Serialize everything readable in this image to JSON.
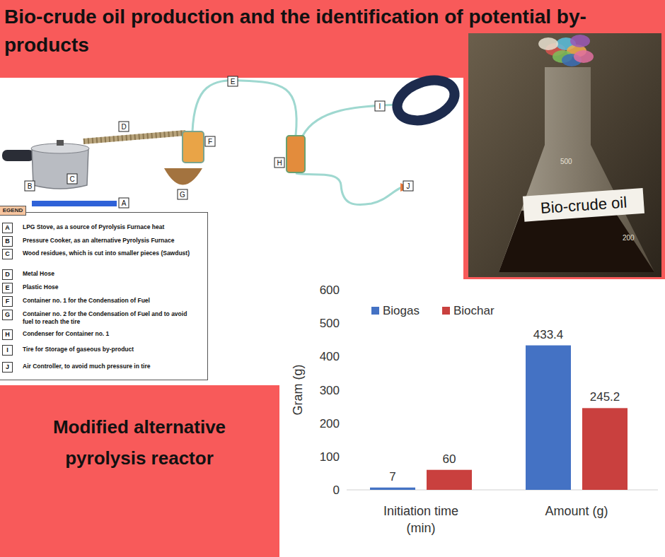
{
  "header": {
    "title": "Bio-crude oil production and the identification of potential by-products"
  },
  "diagram": {
    "title": "Modified alternative pyrolysis reactor",
    "legend_title": "EGEND",
    "parts": [
      {
        "letter": "A",
        "label": "LPG Stove, as a source of Pyrolysis Furnace heat"
      },
      {
        "letter": "B",
        "label": "Pressure Cooker, as an alternative Pyrolysis Furnace"
      },
      {
        "letter": "C",
        "label": "Wood residues, which is cut into smaller pieces (Sawdust)"
      },
      {
        "letter": "D",
        "label": "Metal Hose"
      },
      {
        "letter": "E",
        "label": "Plastic Hose"
      },
      {
        "letter": "F",
        "label": "Container no. 1 for the Condensation of Fuel"
      },
      {
        "letter": "G",
        "label": "Container no. 2 for the Condensation of Fuel and to avoid fuel to reach the tire"
      },
      {
        "letter": "H",
        "label": "Condenser for Container no. 1"
      },
      {
        "letter": "I",
        "label": "Tire for Storage of gaseous by-product"
      },
      {
        "letter": "J",
        "label": "Air Controller, to avoid much pressure in tire"
      }
    ]
  },
  "photo": {
    "label": "Bio-crude oil",
    "volume_marks": [
      500,
      200
    ]
  },
  "chart_data": {
    "type": "bar",
    "categories": [
      "Initiation time (min)",
      "Amount (g)"
    ],
    "series": [
      {
        "name": "Biogas",
        "color": "#4472c4",
        "values": [
          7,
          433.4
        ]
      },
      {
        "name": "Biochar",
        "color": "#c9403e",
        "values": [
          60,
          245.2
        ]
      }
    ],
    "y_label": "Gram (g)",
    "ylim": [
      0,
      600
    ],
    "yticks": [
      0,
      100,
      200,
      300,
      400,
      500,
      600
    ],
    "grid": false,
    "legend": "top-left",
    "data_labels": true
  }
}
